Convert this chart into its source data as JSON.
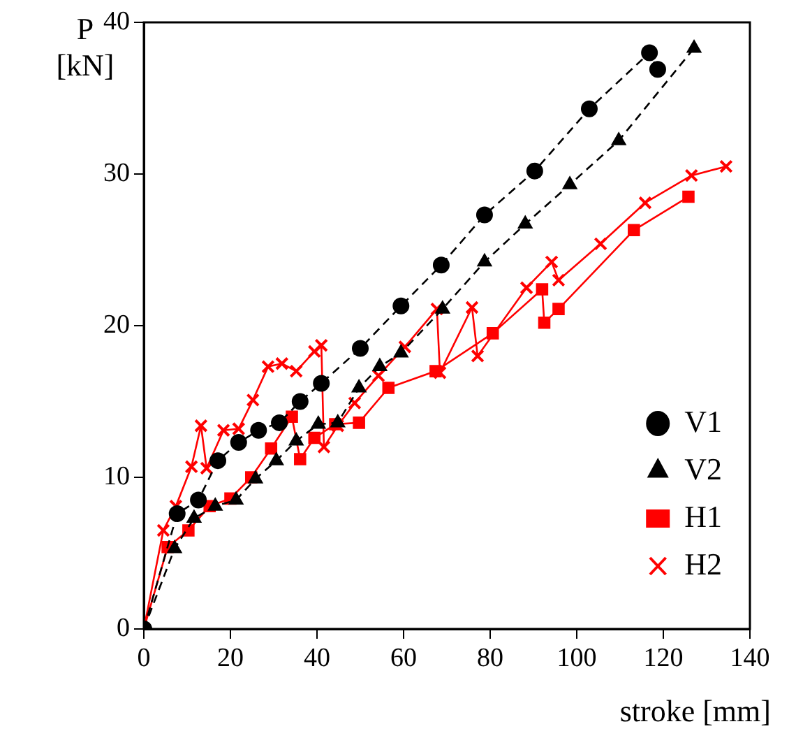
{
  "chart_data": {
    "type": "line",
    "xlabel": "stroke [mm]",
    "ylabel": "P [kN]",
    "xlim": [
      0,
      140
    ],
    "ylim": [
      0,
      40
    ],
    "xticks": [
      0,
      20,
      40,
      60,
      80,
      100,
      120,
      140
    ],
    "yticks": [
      0,
      10,
      20,
      30,
      40
    ],
    "legend": "bottom right",
    "series": [
      {
        "name": "V1",
        "color": "#000000",
        "marker": "circle",
        "line_style": "dashed",
        "x": [
          0,
          7.7,
          12.6,
          17.1,
          21.9,
          26.5,
          31.3,
          36.1,
          41.0,
          50.0,
          59.4,
          68.7,
          78.7,
          90.3,
          102.9,
          116.8,
          118.7
        ],
        "values": [
          0,
          7.6,
          8.5,
          11.1,
          12.3,
          13.1,
          13.6,
          15.0,
          16.2,
          18.5,
          21.3,
          24.0,
          27.3,
          30.2,
          34.3,
          38.0,
          36.9
        ]
      },
      {
        "name": "V2",
        "color": "#000000",
        "marker": "triangle",
        "line_style": "dashed",
        "x": [
          0,
          7.1,
          11.6,
          16.5,
          21.3,
          25.8,
          30.6,
          35.2,
          40.3,
          44.8,
          49.7,
          54.5,
          59.4,
          69.0,
          78.7,
          88.1,
          98.4,
          109.7,
          127.1
        ],
        "values": [
          0,
          5.3,
          7.3,
          8.1,
          8.5,
          9.9,
          11.1,
          12.4,
          13.5,
          13.6,
          15.9,
          17.3,
          18.2,
          21.1,
          24.2,
          26.7,
          29.3,
          32.2,
          38.3
        ]
      },
      {
        "name": "H1",
        "color": "#ff0000",
        "marker": "square",
        "line_style": "solid",
        "x": [
          0,
          5.5,
          10.3,
          15.2,
          20.0,
          24.8,
          29.4,
          34.2,
          36.1,
          39.4,
          44.2,
          49.7,
          56.5,
          67.4,
          80.6,
          92.0,
          92.5,
          95.8,
          113.2,
          125.8
        ],
        "values": [
          0,
          5.4,
          6.5,
          8.1,
          8.6,
          10.0,
          11.9,
          14.0,
          11.2,
          12.6,
          13.5,
          13.6,
          15.9,
          17.0,
          19.5,
          22.4,
          20.2,
          21.1,
          26.3,
          28.5
        ]
      },
      {
        "name": "H2",
        "color": "#ff0000",
        "marker": "cross",
        "line_style": "solid",
        "x": [
          0,
          4.5,
          7.4,
          11.0,
          13.2,
          14.5,
          18.4,
          21.9,
          25.2,
          28.7,
          31.9,
          35.2,
          39.4,
          41.0,
          41.6,
          44.8,
          48.7,
          54.2,
          60.3,
          67.7,
          68.4,
          75.8,
          77.1,
          88.4,
          94.2,
          95.8,
          105.5,
          115.8,
          126.5,
          134.5
        ],
        "values": [
          0,
          6.5,
          8.1,
          10.7,
          13.4,
          10.6,
          13.1,
          13.2,
          15.1,
          17.3,
          17.5,
          17.0,
          18.3,
          18.7,
          12.0,
          13.4,
          14.9,
          16.7,
          18.6,
          21.1,
          16.9,
          21.2,
          18.0,
          22.5,
          24.2,
          23.0,
          25.4,
          28.1,
          29.9,
          30.5
        ]
      }
    ]
  }
}
